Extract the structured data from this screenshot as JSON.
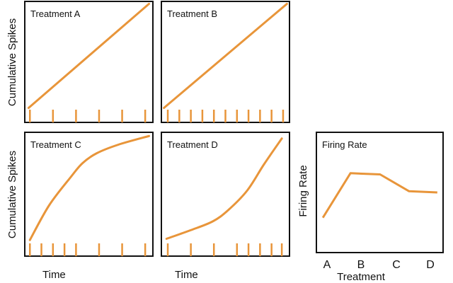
{
  "colors": {
    "line": "#E8953A",
    "frame": "#111111"
  },
  "ylabel_left": "Cumulative Spikes",
  "xlabel_time": "Time",
  "chart_data": [
    {
      "type": "line",
      "title": "Treatment A",
      "xlabel": "Time",
      "ylabel": "Cumulative Spikes",
      "points": [
        [
          0.03,
          0.12
        ],
        [
          0.97,
          0.98
        ]
      ],
      "spike_times": [
        0.04,
        0.22,
        0.4,
        0.58,
        0.76,
        0.94
      ]
    },
    {
      "type": "line",
      "title": "Treatment B",
      "xlabel": "",
      "ylabel": "",
      "points": [
        [
          0.02,
          0.12
        ],
        [
          0.98,
          0.98
        ]
      ],
      "spike_times": [
        0.05,
        0.14,
        0.23,
        0.32,
        0.41,
        0.5,
        0.59,
        0.68,
        0.77,
        0.86,
        0.95
      ]
    },
    {
      "type": "line",
      "title": "Treatment C",
      "xlabel": "Time",
      "ylabel": "Cumulative Spikes",
      "points": [
        [
          0.04,
          0.13
        ],
        [
          0.19,
          0.41
        ],
        [
          0.36,
          0.64
        ],
        [
          0.45,
          0.75
        ],
        [
          0.56,
          0.83
        ],
        [
          0.73,
          0.9
        ],
        [
          0.97,
          0.97
        ]
      ],
      "spike_times": [
        0.04,
        0.13,
        0.22,
        0.31,
        0.4,
        0.58,
        0.76,
        0.94
      ]
    },
    {
      "type": "line",
      "title": "Treatment D",
      "xlabel": "Time",
      "ylabel": "",
      "points": [
        [
          0.04,
          0.14
        ],
        [
          0.23,
          0.21
        ],
        [
          0.4,
          0.28
        ],
        [
          0.52,
          0.37
        ],
        [
          0.67,
          0.53
        ],
        [
          0.8,
          0.74
        ],
        [
          0.94,
          0.95
        ]
      ],
      "spike_times": [
        0.05,
        0.23,
        0.41,
        0.59,
        0.68,
        0.77,
        0.86,
        0.94
      ]
    },
    {
      "type": "line",
      "title": "Firing Rate",
      "xlabel": "Treatment",
      "ylabel": "Firing Rate",
      "categories": [
        "A",
        "B",
        "C",
        "D"
      ],
      "points": [
        [
          -0.12,
          0.29
        ],
        [
          0.68,
          0.66
        ],
        [
          1.54,
          0.65
        ],
        [
          2.38,
          0.51
        ],
        [
          3.2,
          0.5
        ]
      ]
    }
  ]
}
